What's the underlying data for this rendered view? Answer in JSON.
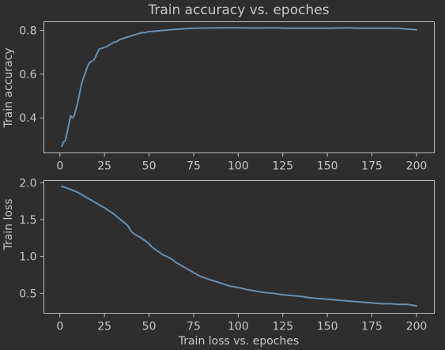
{
  "chart_data": [
    {
      "type": "line",
      "title": "Train accuracy vs. epoches",
      "xlabel": "",
      "ylabel": "Train accuracy",
      "xlim": [
        -9,
        210
      ],
      "ylim": [
        0.24,
        0.84
      ],
      "xticks": [
        0,
        25,
        50,
        75,
        100,
        125,
        150,
        175,
        200
      ],
      "yticks": [
        0.4,
        0.6,
        0.8
      ],
      "ytick_decimals": 1,
      "grid": false,
      "color": "#6a8fae",
      "series": [
        {
          "x": [
            1,
            2,
            3,
            4,
            5,
            6,
            7,
            8,
            9,
            10,
            11,
            12,
            13,
            14,
            15,
            16,
            17,
            18,
            19,
            20,
            22,
            24,
            26,
            28,
            30,
            32,
            34,
            36,
            38,
            40,
            42,
            44,
            46,
            48,
            50,
            55,
            60,
            65,
            70,
            75,
            80,
            90,
            100,
            110,
            120,
            130,
            140,
            150,
            160,
            170,
            180,
            190,
            200
          ],
          "values": [
            0.27,
            0.29,
            0.295,
            0.33,
            0.37,
            0.41,
            0.4,
            0.41,
            0.44,
            0.47,
            0.51,
            0.55,
            0.58,
            0.6,
            0.625,
            0.645,
            0.655,
            0.66,
            0.665,
            0.68,
            0.715,
            0.72,
            0.725,
            0.735,
            0.745,
            0.75,
            0.76,
            0.765,
            0.77,
            0.775,
            0.78,
            0.785,
            0.79,
            0.79,
            0.795,
            0.798,
            0.802,
            0.805,
            0.808,
            0.81,
            0.811,
            0.812,
            0.812,
            0.811,
            0.812,
            0.81,
            0.81,
            0.81,
            0.812,
            0.81,
            0.81,
            0.81,
            0.803
          ]
        }
      ]
    },
    {
      "type": "line",
      "title": "",
      "xlabel": "Train loss vs. epoches",
      "ylabel": "Train loss",
      "xlim": [
        -9,
        210
      ],
      "ylim": [
        0.23,
        2.03
      ],
      "xticks": [
        0,
        25,
        50,
        75,
        100,
        125,
        150,
        175,
        200
      ],
      "yticks": [
        0.5,
        1.0,
        1.5,
        2.0
      ],
      "ytick_decimals": 1,
      "grid": false,
      "color": "#6a8fae",
      "series": [
        {
          "x": [
            1,
            5,
            10,
            15,
            20,
            25,
            30,
            33,
            35,
            38,
            40,
            42,
            45,
            48,
            50,
            52,
            55,
            58,
            60,
            63,
            65,
            68,
            70,
            73,
            75,
            78,
            80,
            85,
            90,
            95,
            100,
            105,
            110,
            115,
            120,
            125,
            130,
            135,
            140,
            145,
            150,
            155,
            160,
            165,
            170,
            175,
            180,
            185,
            190,
            195,
            200
          ],
          "values": [
            1.95,
            1.92,
            1.87,
            1.8,
            1.73,
            1.66,
            1.58,
            1.52,
            1.48,
            1.42,
            1.34,
            1.3,
            1.26,
            1.21,
            1.17,
            1.12,
            1.07,
            1.02,
            1.0,
            0.96,
            0.92,
            0.88,
            0.85,
            0.81,
            0.78,
            0.74,
            0.72,
            0.68,
            0.64,
            0.6,
            0.58,
            0.55,
            0.53,
            0.51,
            0.5,
            0.48,
            0.47,
            0.46,
            0.44,
            0.43,
            0.42,
            0.41,
            0.4,
            0.39,
            0.38,
            0.37,
            0.36,
            0.36,
            0.35,
            0.35,
            0.33
          ]
        }
      ]
    }
  ]
}
